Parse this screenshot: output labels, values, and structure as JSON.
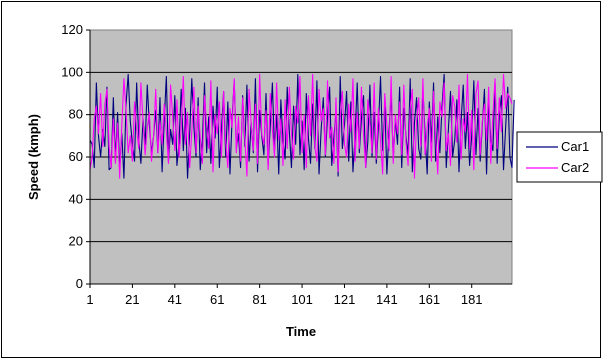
{
  "chart_data": {
    "type": "line",
    "title": "",
    "xlabel": "Time",
    "ylabel": "Speed (kmph)",
    "ylim": [
      0,
      120
    ],
    "y_ticks": [
      "0",
      "20",
      "40",
      "60",
      "80",
      "100",
      "120"
    ],
    "x_ticks": [
      "1",
      "21",
      "41",
      "61",
      "81",
      "101",
      "121",
      "141",
      "161",
      "181"
    ],
    "x_tick_values": [
      1,
      21,
      41,
      61,
      81,
      101,
      121,
      141,
      161,
      181
    ],
    "xlim": [
      1,
      200
    ],
    "grid": true,
    "legend_position": "right",
    "plot_background": "#c0c0c0",
    "series": [
      {
        "name": "Car1",
        "color": "#000080",
        "values": [
          68,
          66,
          55,
          95,
          70,
          60,
          73,
          65,
          93,
          54,
          55,
          88,
          58,
          81,
          55,
          71,
          50,
          85,
          99,
          77,
          66,
          58,
          95,
          68,
          57,
          78,
          66,
          94,
          75,
          62,
          70,
          82,
          62,
          88,
          53,
          77,
          98,
          58,
          73,
          66,
          89,
          56,
          67,
          92,
          63,
          83,
          50,
          71,
          97,
          74,
          60,
          88,
          54,
          68,
          95,
          62,
          79,
          57,
          84,
          69,
          93,
          55,
          73,
          91,
          60,
          86,
          52,
          78,
          96,
          64,
          71,
          55,
          89,
          65,
          94,
          58,
          76,
          62,
          97,
          53,
          82,
          70,
          61,
          90,
          56,
          74,
          95,
          63,
          80,
          52,
          87,
          68,
          59,
          93,
          72,
          55,
          84,
          66,
          99,
          61,
          77,
          54,
          90,
          69,
          57,
          85,
          64,
          96,
          52,
          73,
          88,
          60,
          79,
          93,
          56,
          69,
          82,
          51,
          98,
          64,
          75,
          91,
          58,
          86,
          53,
          70,
          95,
          62,
          78,
          89,
          55,
          67,
          94,
          60,
          81,
          57,
          74,
          98,
          63,
          85,
          52,
          72,
          90,
          59,
          78,
          66,
          93,
          55,
          83,
          70,
          61,
          97,
          53,
          76,
          88,
          64,
          59,
          92,
          71,
          52,
          86,
          67,
          95,
          58,
          79,
          62,
          84,
          99,
          55,
          73,
          91,
          60,
          68,
          87,
          53,
          77,
          94,
          64,
          81,
          56,
          70,
          96,
          61,
          83,
          58,
          75,
          92,
          52,
          86,
          68,
          63,
          95,
          57,
          79,
          89,
          54,
          74,
          93,
          60,
          55,
          87
        ]
      },
      {
        "name": "Car2",
        "color": "#ff00ff",
        "values": [
          54,
          60,
          78,
          84,
          71,
          90,
          65,
          85,
          92,
          65,
          55,
          78,
          57,
          76,
          50,
          75,
          97,
          82,
          62,
          70,
          58,
          86,
          73,
          64,
          95,
          77,
          61,
          74,
          81,
          58,
          70,
          92,
          62,
          77,
          66,
          85,
          72,
          57,
          94,
          79,
          63,
          87,
          60,
          74,
          98,
          66,
          81,
          55,
          72,
          93,
          62,
          84,
          69,
          57,
          89,
          75,
          64,
          96,
          53,
          80,
          71,
          86,
          60,
          91,
          67,
          55,
          83,
          74,
          97,
          62,
          79,
          58,
          88,
          69,
          51,
          92,
          76,
          63,
          85,
          57,
          99,
          71,
          66,
          82,
          54,
          90,
          73,
          60,
          95,
          68,
          78,
          56,
          87,
          64,
          93,
          71,
          59,
          84,
          76,
          98,
          62,
          80,
          55,
          89,
          70,
          99,
          65,
          58,
          92,
          77,
          83,
          61,
          96,
          69,
          74,
          57,
          88,
          53,
          79,
          91,
          66,
          60,
          85,
          72,
          97,
          58,
          81,
          64,
          93,
          70,
          55,
          87,
          76,
          62,
          95,
          59,
          83,
          68,
          52,
          90,
          75,
          63,
          98,
          57,
          80,
          71,
          86,
          61,
          94,
          67,
          56,
          83,
          92,
          50,
          77,
          88,
          65,
          97,
          61,
          74,
          83,
          58,
          91,
          69,
          52,
          86,
          79,
          95,
          63,
          71,
          56,
          89,
          84,
          67,
          94,
          59,
          78,
          72,
          99,
          64,
          82,
          54,
          90,
          96,
          61,
          77,
          85,
          68,
          93,
          57,
          80,
          97,
          64,
          88,
          72,
          99,
          83,
          90,
          88,
          85
        ]
      }
    ]
  }
}
